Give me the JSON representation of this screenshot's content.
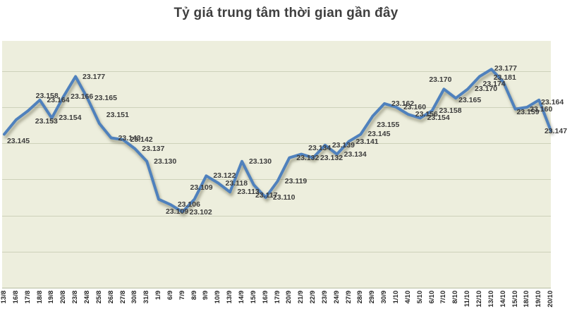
{
  "title": "Tỷ giá trung tâm thời gian gần đây",
  "chart_data": {
    "type": "line",
    "title": "Tỷ giá trung tâm thời gian gần đây",
    "xlabel": "",
    "ylabel": "",
    "legend": false,
    "grid": "horizontal-only",
    "y_axis_labels_visible": false,
    "x_label_rotation_deg": -90,
    "ylim": [
      23060,
      23197
    ],
    "grid_values": [
      23080,
      23100,
      23120,
      23140,
      23160,
      23180
    ],
    "series_name": "Tỷ giá trung tâm",
    "line_color": "#4f81bd",
    "plot_background": "#edeedd",
    "label_color": "#3d3d3d",
    "categories": [
      "13/8",
      "16/8",
      "17/8",
      "18/8",
      "19/8",
      "20/8",
      "23/8",
      "24/8",
      "25/8",
      "26/8",
      "27/8",
      "30/8",
      "31/8",
      "1/9",
      "6/9",
      "7/9",
      "8/9",
      "9/9",
      "10/9",
      "13/9",
      "14/9",
      "15/9",
      "16/9",
      "17/9",
      "20/9",
      "21/9",
      "22/9",
      "23/9",
      "24/9",
      "27/9",
      "28/9",
      "29/9",
      "30/9",
      "1/10",
      "4/10",
      "5/10",
      "6/10",
      "7/10",
      "8/10",
      "11/10",
      "12/10",
      "13/10",
      "14/10",
      "15/10",
      "18/10",
      "19/10",
      "20/10"
    ],
    "values": [
      23145,
      23153,
      23158,
      23164,
      23154,
      23166,
      23177,
      23165,
      23151,
      23143,
      23142,
      23137,
      23130,
      23109,
      23106,
      23102,
      23109,
      23122,
      23118,
      23113,
      23130,
      23117,
      23110,
      23119,
      23132,
      23134,
      23132,
      23139,
      23134,
      23141,
      23145,
      23155,
      23162,
      23160,
      23156,
      23154,
      23158,
      23170,
      23165,
      23170,
      23177,
      23181,
      23174,
      23159,
      23160,
      23164,
      23147
    ],
    "value_labels": [
      "23.145",
      "23.153",
      "23.158",
      "23.164",
      "23.154",
      "23.166",
      "23.177",
      "23.165",
      "23.151",
      "23.143",
      "23.142",
      "23.137",
      "23.130",
      "23.109",
      "23.106",
      "23.102",
      "23.109",
      "23.122",
      "23.118",
      "23.113",
      "23.130",
      "23.117",
      "23.110",
      "23.119",
      "23.132",
      "23.134",
      "23.132",
      "23.139",
      "23.134",
      "23.141",
      "23.145",
      "23.155",
      "23.162",
      "23.160",
      "23.156",
      "23.154",
      "23.158",
      "23.170",
      "23.165",
      "23.170",
      "23.177",
      "23.181",
      "23.174",
      "23.159",
      "23.160",
      "23.164",
      "23.147"
    ]
  }
}
